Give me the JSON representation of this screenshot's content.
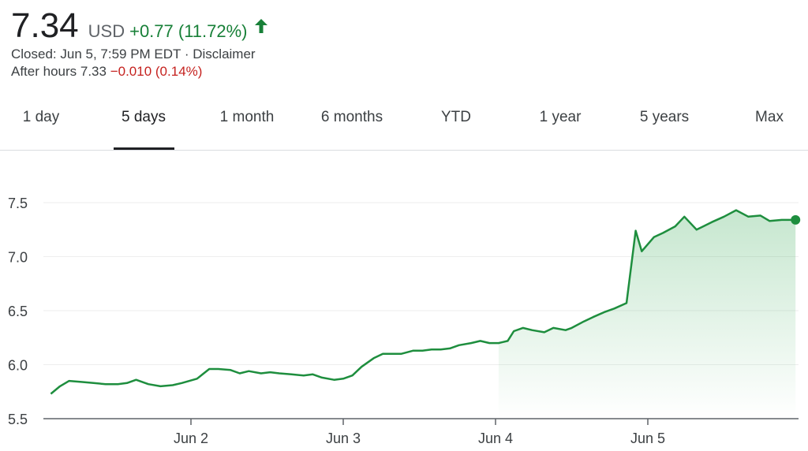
{
  "quote": {
    "price": "7.34",
    "currency": "USD",
    "change": "+0.77 (11.72%)",
    "closed_text": "Closed: Jun 5, 7:59 PM EDT",
    "separator": " · ",
    "disclaimer": "Disclaimer",
    "after_hours_label": "After hours 7.33",
    "after_hours_change": "−0.010 (0.14%)",
    "colors": {
      "up": "#188038",
      "down": "#c5221f"
    },
    "icons": {
      "trend": "arrow-up-icon"
    }
  },
  "tabs": [
    {
      "label": "1 day"
    },
    {
      "label": "5 days",
      "active": true
    },
    {
      "label": "1 month"
    },
    {
      "label": "6 months"
    },
    {
      "label": "YTD"
    },
    {
      "label": "1 year"
    },
    {
      "label": "5 years"
    },
    {
      "label": "Max"
    }
  ],
  "chart_data": {
    "type": "area",
    "ylim": [
      5.5,
      7.75
    ],
    "y_ticks": [
      "5.5",
      "6.0",
      "6.5",
      "7.0",
      "7.5"
    ],
    "x_ticks": [
      "Jun 2",
      "Jun 3",
      "Jun 4",
      "Jun 5"
    ],
    "x_tick_positions": [
      1,
      2,
      3,
      4
    ],
    "xlim": [
      0.08,
      4.97
    ],
    "grid": true,
    "line_color": "#1e8e3e",
    "series": [
      {
        "x": [
          0.08,
          0.14,
          0.2,
          0.28,
          0.36,
          0.44,
          0.52,
          0.58,
          0.64,
          0.72,
          0.8,
          0.88,
          0.94,
          1.04,
          1.12,
          1.18,
          1.26,
          1.32,
          1.38,
          1.46,
          1.52,
          1.58,
          1.66,
          1.74,
          1.8,
          1.86,
          1.94,
          2.0,
          2.06,
          2.12,
          2.2,
          2.26,
          2.32,
          2.38,
          2.46,
          2.52,
          2.58,
          2.64,
          2.7,
          2.76,
          2.84,
          2.9,
          2.96,
          3.02,
          3.08,
          3.12,
          3.18,
          3.24,
          3.32,
          3.38,
          3.46,
          3.5,
          3.58,
          3.64,
          3.72,
          3.78,
          3.86,
          3.92,
          3.96,
          4.04,
          4.1,
          4.18,
          4.24,
          4.32,
          4.42,
          4.5,
          4.58,
          4.66,
          4.74,
          4.8,
          4.88,
          4.94,
          4.97
        ],
        "y": [
          5.73,
          5.8,
          5.85,
          5.84,
          5.83,
          5.82,
          5.82,
          5.83,
          5.86,
          5.82,
          5.8,
          5.81,
          5.83,
          5.87,
          5.96,
          5.96,
          5.95,
          5.92,
          5.94,
          5.92,
          5.93,
          5.92,
          5.91,
          5.9,
          5.91,
          5.88,
          5.86,
          5.87,
          5.9,
          5.98,
          6.06,
          6.1,
          6.1,
          6.1,
          6.13,
          6.13,
          6.14,
          6.14,
          6.15,
          6.18,
          6.2,
          6.22,
          6.2,
          6.2,
          6.22,
          6.31,
          6.34,
          6.32,
          6.3,
          6.34,
          6.32,
          6.34,
          6.4,
          6.44,
          6.49,
          6.52,
          6.57,
          7.24,
          7.05,
          7.18,
          7.22,
          7.28,
          7.37,
          7.25,
          7.32,
          7.37,
          7.43,
          7.37,
          7.38,
          7.33,
          7.34,
          7.34,
          7.34
        ]
      }
    ]
  }
}
